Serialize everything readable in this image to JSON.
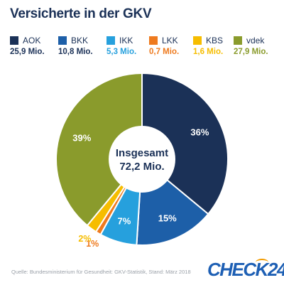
{
  "title": "Versicherte in der GKV",
  "legend": [
    {
      "label": "AOK",
      "value": "25,9 Mio.",
      "color": "#1b3157"
    },
    {
      "label": "BKK",
      "value": "10,8 Mio.",
      "color": "#1d5fa8"
    },
    {
      "label": "IKK",
      "value": "5,3 Mio.",
      "color": "#26a0dd"
    },
    {
      "label": "LKK",
      "value": "0,7 Mio.",
      "color": "#ee7a1e"
    },
    {
      "label": "KBS",
      "value": "1,6 Mio.",
      "color": "#f6bd00"
    },
    {
      "label": "vdek",
      "value": "27,9 Mio.",
      "color": "#8a9b2c"
    }
  ],
  "center": {
    "line1": "Insgesamt",
    "line2": "72,2 Mio."
  },
  "source": "Quelle: Bundesministerium für Gesundheit: GKV-Statistik, Stand: März 2018",
  "logo": {
    "text": "CHECK24",
    "color": "#1d5fb4",
    "accent": "#f29b00"
  },
  "chart_data": {
    "type": "pie",
    "categories": [
      "AOK",
      "BKK",
      "IKK",
      "LKK",
      "KBS",
      "vdek"
    ],
    "values": [
      36,
      15,
      7,
      1,
      2,
      39
    ],
    "value_labels": [
      "36%",
      "15%",
      "7%",
      "1%",
      "2%",
      "39%"
    ],
    "absolute_values_mio": [
      25.9,
      10.8,
      5.3,
      0.7,
      1.6,
      27.9
    ],
    "unit": "%",
    "colors": [
      "#1b3157",
      "#1d5fa8",
      "#26a0dd",
      "#ee7a1e",
      "#f6bd00",
      "#8a9b2c"
    ],
    "label_colors": [
      "#ffffff",
      "#ffffff",
      "#ffffff",
      "#ee7a1e",
      "#f6bd00",
      "#ffffff"
    ],
    "donut": true,
    "legend_position": "top"
  }
}
